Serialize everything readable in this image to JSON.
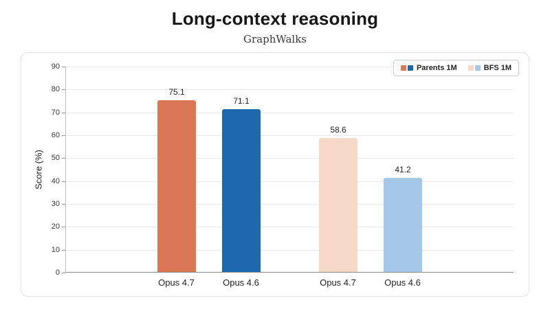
{
  "chart_data": {
    "type": "bar",
    "title": "Long-context reasoning",
    "subtitle": "GraphWalks",
    "ylabel": "Score (%)",
    "ylim": [
      0,
      90
    ],
    "yticks": [
      0,
      10,
      20,
      30,
      40,
      50,
      60,
      70,
      80,
      90
    ],
    "categories": [
      "Opus 4.7",
      "Opus 4.6",
      "Opus 4.7",
      "Opus 4.6"
    ],
    "values": [
      75.1,
      71.1,
      58.6,
      41.2
    ],
    "value_labels": [
      "75.1",
      "71.1",
      "58.6",
      "41.2"
    ],
    "bar_colors": [
      "#d97757",
      "#1e68ad",
      "#f7d9ca",
      "#a6c8e8"
    ],
    "groups": [
      [
        0,
        1
      ],
      [
        2,
        3
      ]
    ],
    "grid": true,
    "legend_position": "top-right",
    "legend": [
      {
        "label": "Parents 1M",
        "colors": [
          "#d97757",
          "#1e68ad"
        ]
      },
      {
        "label": "BFS 1M",
        "colors": [
          "#f7d9ca",
          "#a6c8e8"
        ]
      }
    ]
  }
}
